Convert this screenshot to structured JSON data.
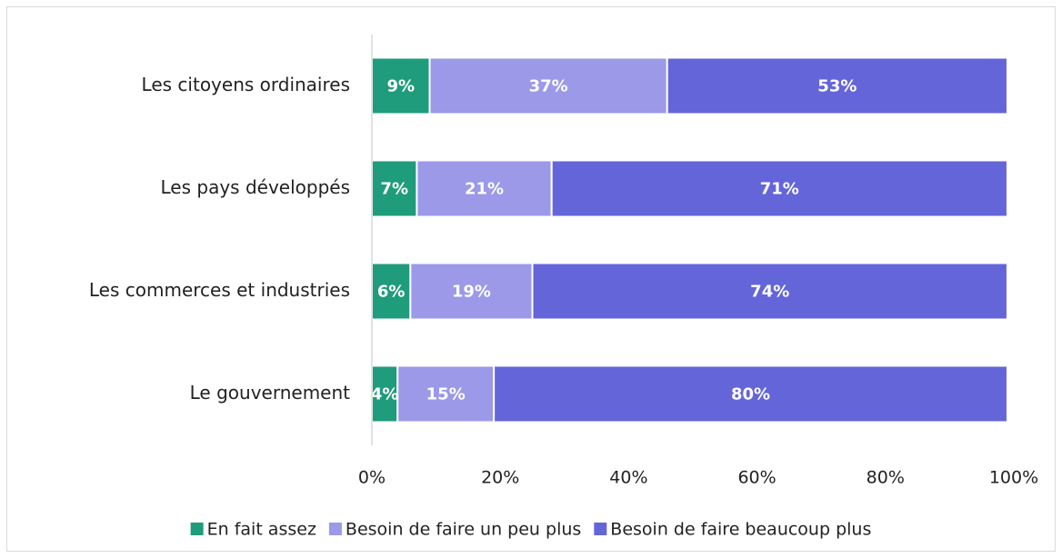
{
  "chart_data": {
    "type": "stacked_bar_horizontal",
    "categories": [
      "Les citoyens ordinaires",
      "Les pays développés",
      "Les commerces et industries",
      "Le gouvernement"
    ],
    "series": [
      {
        "name": "En fait assez",
        "color": "#1f9c7c",
        "values": [
          9,
          7,
          6,
          4
        ],
        "value_labels": [
          "9%",
          "7%",
          "6%",
          "4%"
        ]
      },
      {
        "name": "Besoin de faire un peu plus",
        "color": "#9b99e8",
        "values": [
          37,
          21,
          19,
          15
        ],
        "value_labels": [
          "37%",
          "21%",
          "19%",
          "15%"
        ]
      },
      {
        "name": "Besoin de faire beaucoup plus",
        "color": "#6565da",
        "values": [
          53,
          71,
          74,
          80
        ],
        "value_labels": [
          "53%",
          "71%",
          "74%",
          "80%"
        ]
      }
    ],
    "xlim": [
      0,
      100
    ],
    "xticks": [
      {
        "value": 0,
        "label": "0%"
      },
      {
        "value": 20,
        "label": "20%"
      },
      {
        "value": 40,
        "label": "40%"
      },
      {
        "value": 60,
        "label": "60%"
      },
      {
        "value": 80,
        "label": "80%"
      },
      {
        "value": 100,
        "label": "100%"
      }
    ],
    "legend": "bottom"
  }
}
